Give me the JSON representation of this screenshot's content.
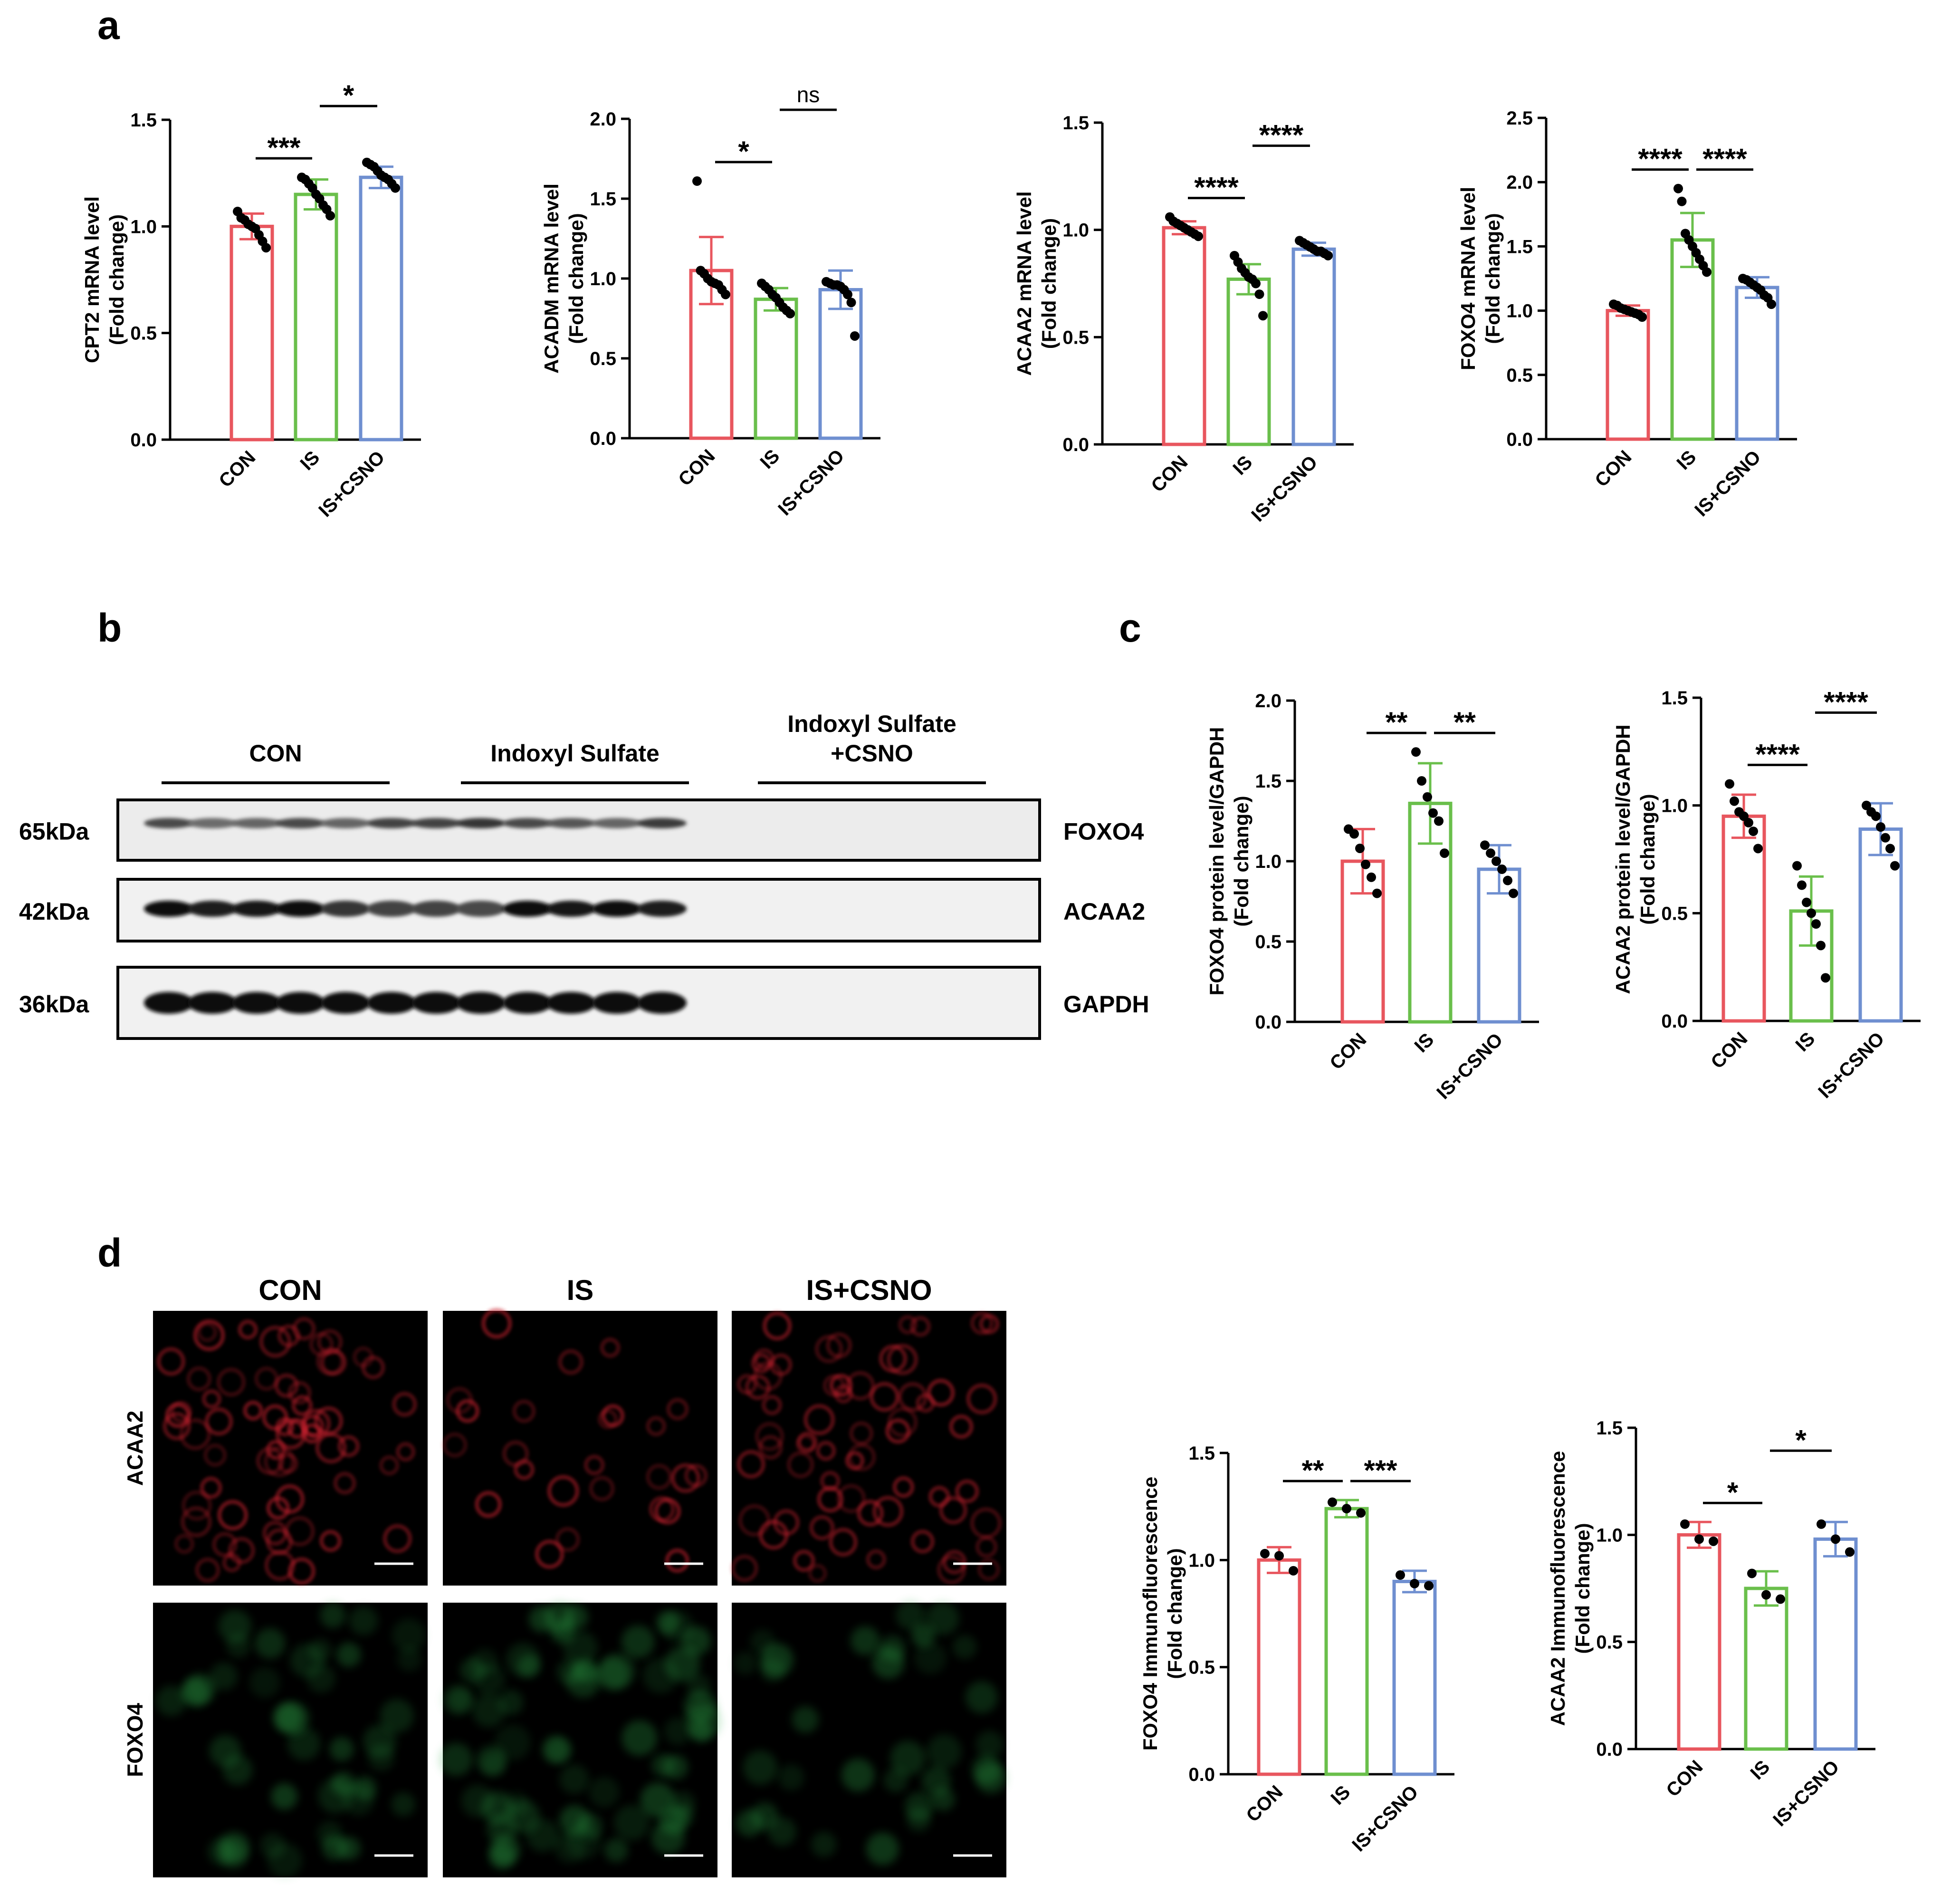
{
  "panel_labels": {
    "a": "a",
    "b": "b",
    "c": "c",
    "d": "d"
  },
  "colors": {
    "CON": "#e8565e",
    "IS": "#6abf4b",
    "IS+CSNO": "#6f8fd0",
    "point": "#000000"
  },
  "chart_data": [
    {
      "type": "bar",
      "categories": [
        "CON",
        "IS",
        "IS+CSNO"
      ],
      "values": [
        1.0,
        1.15,
        1.23
      ],
      "errors": [
        0.06,
        0.07,
        0.05
      ],
      "points": [
        [
          1.07,
          1.04,
          1.03,
          1.01,
          1.0,
          0.99,
          0.96,
          0.93,
          0.9
        ],
        [
          1.23,
          1.22,
          1.2,
          1.18,
          1.15,
          1.13,
          1.1,
          1.08,
          1.05
        ],
        [
          1.3,
          1.29,
          1.28,
          1.26,
          1.24,
          1.23,
          1.22,
          1.2,
          1.18
        ]
      ],
      "ylabel": [
        "CPT2 mRNA level",
        "(Fold change)"
      ],
      "ylim": [
        0,
        1.5
      ],
      "yticks": [
        "0.0",
        "0.5",
        "1.0",
        "1.5"
      ],
      "sig": [
        {
          "from": 0,
          "to": 1,
          "text": "***"
        },
        {
          "from": 1,
          "to": 2,
          "text": "*"
        }
      ]
    },
    {
      "type": "bar",
      "categories": [
        "CON",
        "IS",
        "IS+CSNO"
      ],
      "values": [
        1.05,
        0.87,
        0.93
      ],
      "errors": [
        0.21,
        0.07,
        0.12
      ],
      "points": [
        [
          1.61,
          1.05,
          1.03,
          1.0,
          0.98,
          0.97,
          0.96,
          0.93,
          0.9
        ],
        [
          0.97,
          0.95,
          0.93,
          0.9,
          0.88,
          0.85,
          0.82,
          0.8,
          0.78
        ],
        [
          0.98,
          0.97,
          0.96,
          0.96,
          0.95,
          0.93,
          0.9,
          0.85,
          0.64
        ]
      ],
      "ylabel": [
        "ACADM mRNA level",
        "(Fold change)"
      ],
      "ylim": [
        0,
        2.0
      ],
      "yticks": [
        "0.0",
        "0.5",
        "1.0",
        "1.5",
        "2.0"
      ],
      "sig": [
        {
          "from": 0,
          "to": 1,
          "text": "*"
        },
        {
          "from": 1,
          "to": 2,
          "text": "ns"
        }
      ]
    },
    {
      "type": "bar",
      "categories": [
        "CON",
        "IS",
        "IS+CSNO"
      ],
      "values": [
        1.01,
        0.77,
        0.91
      ],
      "errors": [
        0.03,
        0.07,
        0.03
      ],
      "points": [
        [
          1.06,
          1.04,
          1.03,
          1.02,
          1.01,
          1.0,
          0.99,
          0.98,
          0.97
        ],
        [
          0.88,
          0.85,
          0.82,
          0.8,
          0.78,
          0.77,
          0.75,
          0.7,
          0.6
        ],
        [
          0.95,
          0.94,
          0.93,
          0.92,
          0.91,
          0.9,
          0.9,
          0.89,
          0.88
        ]
      ],
      "ylabel": [
        "ACAA2 mRNA level",
        "(Fold change)"
      ],
      "ylim": [
        0,
        1.5
      ],
      "yticks": [
        "0.0",
        "0.5",
        "1.0",
        "1.5"
      ],
      "sig": [
        {
          "from": 0,
          "to": 1,
          "text": "****"
        },
        {
          "from": 1,
          "to": 2,
          "text": "****"
        }
      ]
    },
    {
      "type": "bar",
      "categories": [
        "CON",
        "IS",
        "IS+CSNO"
      ],
      "values": [
        1.0,
        1.55,
        1.18
      ],
      "errors": [
        0.04,
        0.21,
        0.08
      ],
      "points": [
        [
          1.05,
          1.04,
          1.02,
          1.01,
          1.0,
          0.99,
          0.98,
          0.97,
          0.95
        ],
        [
          1.95,
          1.85,
          1.6,
          1.55,
          1.5,
          1.45,
          1.4,
          1.35,
          1.3
        ],
        [
          1.25,
          1.24,
          1.22,
          1.2,
          1.18,
          1.16,
          1.12,
          1.1,
          1.05
        ]
      ],
      "ylabel": [
        "FOXO4 mRNA level",
        "(Fold change)"
      ],
      "ylim": [
        0,
        2.5
      ],
      "yticks": [
        "0.0",
        "0.5",
        "1.0",
        "1.5",
        "2.0",
        "2.5"
      ],
      "sig": [
        {
          "from": 0,
          "to": 1,
          "text": "****"
        },
        {
          "from": 1,
          "to": 2,
          "text": "****"
        }
      ]
    },
    {
      "type": "bar",
      "categories": [
        "CON",
        "IS",
        "IS+CSNO"
      ],
      "values": [
        1.0,
        1.36,
        0.95
      ],
      "errors": [
        0.2,
        0.25,
        0.15
      ],
      "points": [
        [
          1.2,
          1.17,
          1.08,
          0.98,
          0.9,
          0.8
        ],
        [
          1.68,
          1.5,
          1.4,
          1.3,
          1.25,
          1.05
        ],
        [
          1.1,
          1.05,
          1.0,
          0.95,
          0.88,
          0.8
        ]
      ],
      "ylabel": [
        "FOXO4 protein level/GAPDH",
        "(Fold change)"
      ],
      "ylim": [
        0,
        2.0
      ],
      "yticks": [
        "0.0",
        "0.5",
        "1.0",
        "1.5",
        "2.0"
      ],
      "sig": [
        {
          "from": 0,
          "to": 1,
          "text": "**"
        },
        {
          "from": 1,
          "to": 2,
          "text": "**"
        }
      ]
    },
    {
      "type": "bar",
      "categories": [
        "CON",
        "IS",
        "IS+CSNO"
      ],
      "values": [
        0.95,
        0.51,
        0.89
      ],
      "errors": [
        0.1,
        0.16,
        0.12
      ],
      "points": [
        [
          1.1,
          1.02,
          0.97,
          0.95,
          0.92,
          0.88,
          0.8
        ],
        [
          0.72,
          0.63,
          0.55,
          0.5,
          0.45,
          0.35,
          0.2
        ],
        [
          1.0,
          0.97,
          0.95,
          0.9,
          0.85,
          0.8,
          0.72
        ]
      ],
      "ylabel": [
        "ACAA2 protein level/GAPDH",
        "(Fold change)"
      ],
      "ylim": [
        0,
        1.5
      ],
      "yticks": [
        "0.0",
        "0.5",
        "1.0",
        "1.5"
      ],
      "sig": [
        {
          "from": 0,
          "to": 1,
          "text": "****"
        },
        {
          "from": 1,
          "to": 2,
          "text": "****"
        }
      ]
    },
    {
      "type": "bar",
      "categories": [
        "CON",
        "IS",
        "IS+CSNO"
      ],
      "values": [
        1.0,
        1.24,
        0.9
      ],
      "errors": [
        0.06,
        0.04,
        0.05
      ],
      "points": [
        [
          1.03,
          1.02,
          0.95
        ],
        [
          1.27,
          1.24,
          1.22
        ],
        [
          0.93,
          0.89,
          0.88
        ]
      ],
      "ylabel": [
        "FOXO4 Immunofluorescence",
        "(Fold change)"
      ],
      "ylim": [
        0,
        1.5
      ],
      "yticks": [
        "0.0",
        "0.5",
        "1.0",
        "1.5"
      ],
      "sig": [
        {
          "from": 0,
          "to": 1,
          "text": "**"
        },
        {
          "from": 1,
          "to": 2,
          "text": "***"
        }
      ]
    },
    {
      "type": "bar",
      "categories": [
        "CON",
        "IS",
        "IS+CSNO"
      ],
      "values": [
        1.0,
        0.75,
        0.98
      ],
      "errors": [
        0.06,
        0.08,
        0.08
      ],
      "points": [
        [
          1.05,
          0.98,
          0.97
        ],
        [
          0.82,
          0.72,
          0.7
        ],
        [
          1.05,
          0.98,
          0.92
        ]
      ],
      "ylabel": [
        "ACAA2 Immunofluorescence",
        "(Fold change)"
      ],
      "ylim": [
        0,
        1.5
      ],
      "yticks": [
        "0.0",
        "0.5",
        "1.0",
        "1.5"
      ],
      "sig": [
        {
          "from": 0,
          "to": 1,
          "text": "*"
        },
        {
          "from": 1,
          "to": 2,
          "text": "*"
        }
      ]
    }
  ],
  "blot": {
    "groups": [
      [
        "CON"
      ],
      [
        "Indoxyl Sulfate"
      ],
      [
        "Indoxyl Sulfate",
        "+CSNO"
      ]
    ],
    "rows": [
      {
        "name": "FOXO4",
        "mw": "65kDa",
        "intensity": [
          0.55,
          0.3,
          0.35,
          0.55,
          0.35,
          0.6,
          0.6,
          0.7,
          0.55,
          0.45,
          0.35,
          0.65
        ]
      },
      {
        "name": "ACAA2",
        "mw": "42kDa",
        "intensity": [
          0.95,
          0.85,
          0.9,
          0.95,
          0.7,
          0.6,
          0.6,
          0.55,
          0.95,
          0.9,
          0.95,
          0.85
        ]
      },
      {
        "name": "GAPDH",
        "mw": "36kDa",
        "intensity": [
          1,
          1,
          1,
          1,
          1,
          1,
          1,
          1,
          1,
          1,
          1,
          1
        ]
      }
    ]
  },
  "micrographs": {
    "columns": [
      "CON",
      "IS",
      "IS+CSNO"
    ],
    "rows": [
      {
        "name": "ACAA2",
        "color": "#c8232d"
      },
      {
        "name": "FOXO4",
        "color": "#2fa84a"
      }
    ],
    "cell_density": [
      [
        0.9,
        0.35,
        0.9
      ],
      [
        0.55,
        0.85,
        0.45
      ]
    ]
  }
}
